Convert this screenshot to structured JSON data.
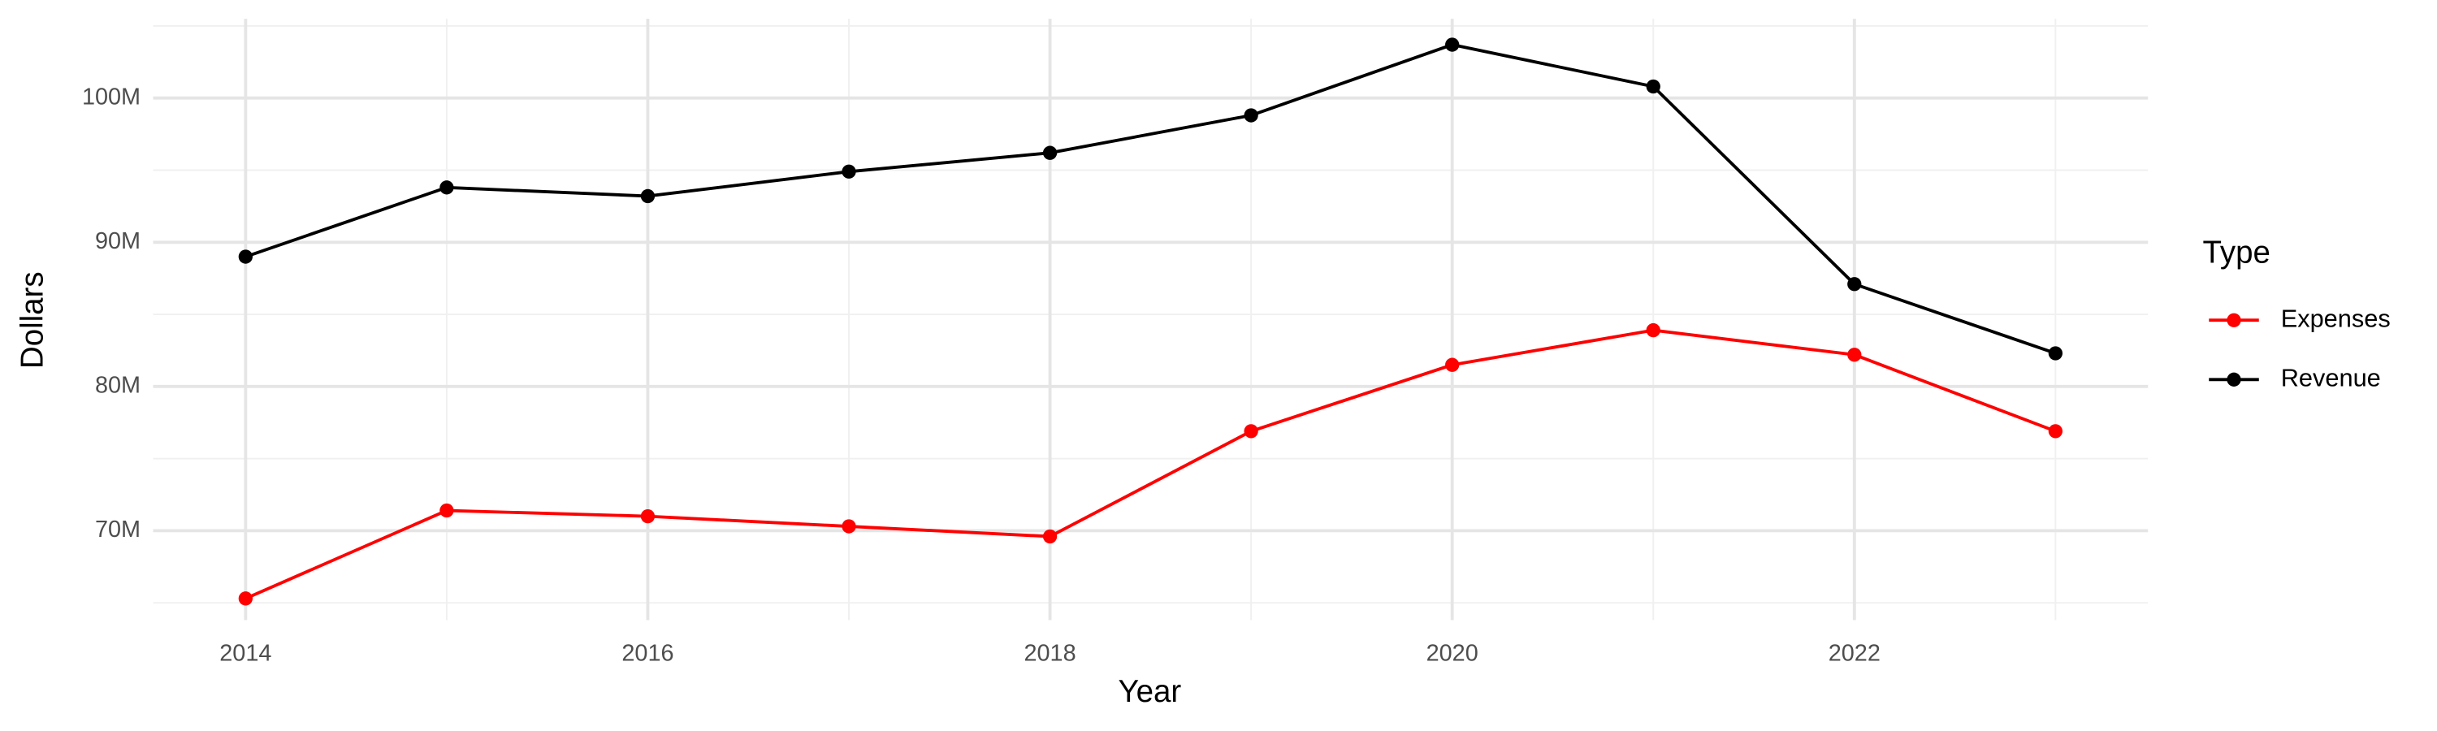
{
  "chart_data": {
    "type": "line",
    "x_label": "Year",
    "y_label": "Dollars",
    "x": [
      2014,
      2015,
      2016,
      2017,
      2018,
      2019,
      2020,
      2021,
      2022,
      2023
    ],
    "series": [
      {
        "name": "Expenses",
        "color": "#ff0000",
        "values": [
          65300000,
          71400000,
          71000000,
          70300000,
          69600000,
          76900000,
          81500000,
          83900000,
          82200000,
          76900000
        ]
      },
      {
        "name": "Revenue",
        "color": "#000000",
        "values": [
          89000000,
          93800000,
          93200000,
          94900000,
          96200000,
          98800000,
          103700000,
          100800000,
          87100000,
          82300000
        ]
      }
    ],
    "xlim": [
      2013.54,
      2023.46
    ],
    "xticks": [
      2014,
      2016,
      2018,
      2020,
      2022
    ],
    "ylim": [
      63800000,
      105500000
    ],
    "yticks": [
      {
        "value": 70000000,
        "label": "70M"
      },
      {
        "value": 80000000,
        "label": "80M"
      },
      {
        "value": 90000000,
        "label": "90M"
      },
      {
        "value": 100000000,
        "label": "100M"
      }
    ],
    "grid": true,
    "legend_title": "Type",
    "legend_position": "right"
  }
}
